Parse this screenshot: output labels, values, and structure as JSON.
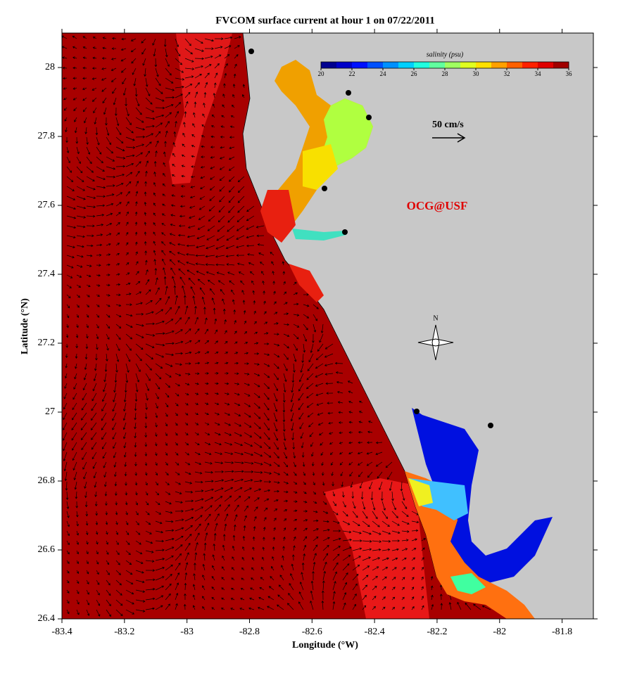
{
  "title": "FVCOM surface current at hour 1 on 07/22/2011",
  "x_axis": {
    "label": "Longitude (°W)",
    "lim": [
      -83.4,
      -81.7
    ],
    "ticks": [
      -83.4,
      -83.2,
      -83,
      -82.8,
      -82.6,
      -82.4,
      -82.2,
      -82,
      -81.8
    ]
  },
  "y_axis": {
    "label": "Latitude (°N)",
    "lim": [
      26.4,
      28.1
    ],
    "ticks": [
      26.4,
      26.6,
      26.8,
      27,
      27.2,
      27.4,
      27.6,
      27.8,
      28
    ]
  },
  "colorbar": {
    "title": "salinity (psu)",
    "lim": [
      20,
      36
    ],
    "ticks": [
      20,
      22,
      24,
      26,
      28,
      30,
      32,
      34,
      36
    ],
    "colors": [
      "#00008f",
      "#0000c8",
      "#0010ff",
      "#0050ff",
      "#0090ff",
      "#00d0ff",
      "#20ffdf",
      "#60ff9f",
      "#a0ff60",
      "#dfff20",
      "#ffe000",
      "#ffa000",
      "#ff6000",
      "#ff2000",
      "#df0000",
      "#a00000"
    ]
  },
  "scale_label": "50 cm/s",
  "watermark": "OCG@USF",
  "compass_label": "N"
}
